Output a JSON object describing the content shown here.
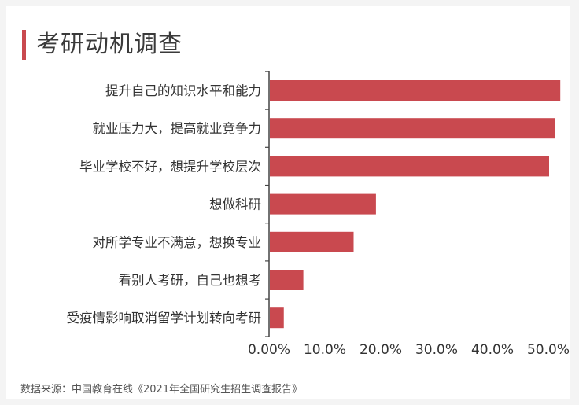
{
  "colors": {
    "bar": "#c9494f",
    "axis": "#444444",
    "text": "#333333"
  },
  "chart_data": {
    "type": "bar",
    "orientation": "horizontal",
    "title": "考研动机调查",
    "categories": [
      "提升自己的知识水平和能力",
      "就业压力大，提高就业竞争力",
      "毕业学校不好，想提升学校层次",
      "想做科研",
      "对所学专业不满意，想换专业",
      "看别人考研，自己也想考",
      "受疫情影响取消留学计划转向考研"
    ],
    "values": [
      52.0,
      51.0,
      50.0,
      19.0,
      15.0,
      6.0,
      2.5
    ],
    "unit": "%",
    "xlim": [
      0,
      50
    ],
    "xticks": [
      0,
      10,
      20,
      30,
      40,
      50
    ],
    "xtick_labels": [
      "0.00%",
      "10.0%",
      "20.0%",
      "30.0%",
      "40.0%",
      "50.0%"
    ],
    "grid": false,
    "legend": "none",
    "source": "数据来源：中国教育在线《2021年全国研究生招生调查报告》"
  }
}
